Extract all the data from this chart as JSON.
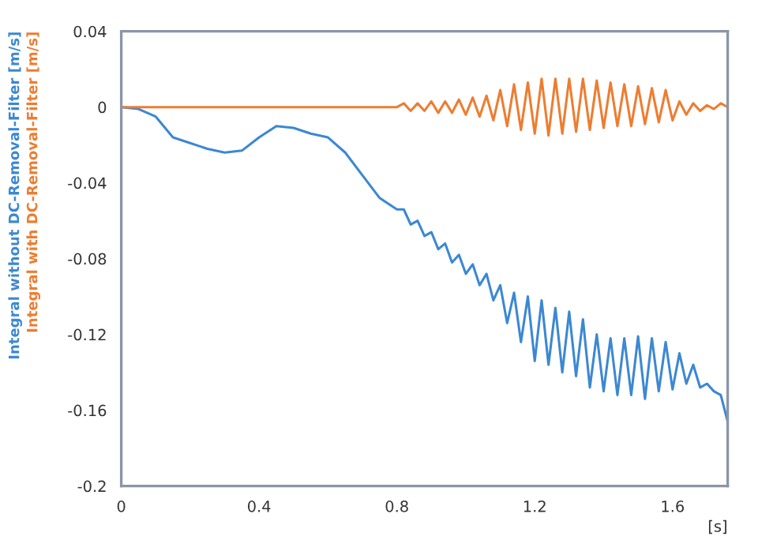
{
  "chart_data": {
    "type": "line",
    "xlabel": "[s]",
    "xlim": [
      0,
      1.76
    ],
    "xticks": [
      0,
      0.4,
      0.8,
      1.2,
      1.6
    ],
    "ylim": [
      -0.2,
      0.04
    ],
    "yticks": [
      0.04,
      0,
      -0.04,
      -0.08,
      -0.12,
      -0.16,
      -0.2
    ],
    "grid": false,
    "legend": "left",
    "marker": "none",
    "line_style": "solid",
    "series": [
      {
        "name": "Integral without DC-Removal-Filter [m/s]",
        "color": "#3c88d2",
        "x": [
          0,
          0.05,
          0.1,
          0.15,
          0.2,
          0.25,
          0.3,
          0.35,
          0.4,
          0.45,
          0.5,
          0.55,
          0.6,
          0.65,
          0.7,
          0.75,
          0.8,
          0.82,
          0.84,
          0.86,
          0.88,
          0.9,
          0.92,
          0.94,
          0.96,
          0.98,
          1.0,
          1.02,
          1.04,
          1.06,
          1.08,
          1.1,
          1.12,
          1.14,
          1.16,
          1.18,
          1.2,
          1.22,
          1.24,
          1.26,
          1.28,
          1.3,
          1.32,
          1.34,
          1.36,
          1.38,
          1.4,
          1.42,
          1.44,
          1.46,
          1.48,
          1.5,
          1.52,
          1.54,
          1.56,
          1.58,
          1.6,
          1.62,
          1.64,
          1.66,
          1.68,
          1.7,
          1.72,
          1.74,
          1.76
        ],
        "values": [
          0,
          -0.001,
          -0.005,
          -0.016,
          -0.019,
          -0.022,
          -0.024,
          -0.023,
          -0.016,
          -0.01,
          -0.011,
          -0.014,
          -0.016,
          -0.024,
          -0.036,
          -0.048,
          -0.054,
          -0.054,
          -0.062,
          -0.06,
          -0.068,
          -0.066,
          -0.075,
          -0.072,
          -0.082,
          -0.078,
          -0.088,
          -0.083,
          -0.094,
          -0.088,
          -0.102,
          -0.094,
          -0.114,
          -0.098,
          -0.124,
          -0.1,
          -0.134,
          -0.102,
          -0.136,
          -0.106,
          -0.14,
          -0.108,
          -0.142,
          -0.112,
          -0.148,
          -0.12,
          -0.15,
          -0.122,
          -0.152,
          -0.122,
          -0.152,
          -0.121,
          -0.154,
          -0.122,
          -0.15,
          -0.124,
          -0.149,
          -0.13,
          -0.146,
          -0.136,
          -0.148,
          -0.146,
          -0.15,
          -0.152,
          -0.166
        ]
      },
      {
        "name": "Integral with DC-Removal-Filter [m/s]",
        "color": "#ed7d31",
        "x": [
          0,
          0.2,
          0.4,
          0.6,
          0.7,
          0.8,
          0.82,
          0.84,
          0.86,
          0.88,
          0.9,
          0.92,
          0.94,
          0.96,
          0.98,
          1.0,
          1.02,
          1.04,
          1.06,
          1.08,
          1.1,
          1.12,
          1.14,
          1.16,
          1.18,
          1.2,
          1.22,
          1.24,
          1.26,
          1.28,
          1.3,
          1.32,
          1.34,
          1.36,
          1.38,
          1.4,
          1.42,
          1.44,
          1.46,
          1.48,
          1.5,
          1.52,
          1.54,
          1.56,
          1.58,
          1.6,
          1.62,
          1.64,
          1.66,
          1.68,
          1.7,
          1.72,
          1.74,
          1.76
        ],
        "values": [
          0,
          0,
          0,
          0,
          0,
          0,
          0.002,
          -0.002,
          0.002,
          -0.002,
          0.003,
          -0.003,
          0.003,
          -0.003,
          0.004,
          -0.004,
          0.005,
          -0.005,
          0.006,
          -0.007,
          0.009,
          -0.01,
          0.012,
          -0.012,
          0.013,
          -0.014,
          0.015,
          -0.015,
          0.015,
          -0.014,
          0.015,
          -0.013,
          0.015,
          -0.012,
          0.014,
          -0.011,
          0.013,
          -0.01,
          0.012,
          -0.01,
          0.011,
          -0.009,
          0.01,
          -0.008,
          0.009,
          -0.007,
          0.003,
          -0.004,
          0.002,
          -0.002,
          0.001,
          -0.001,
          0.002,
          0
        ]
      }
    ]
  }
}
